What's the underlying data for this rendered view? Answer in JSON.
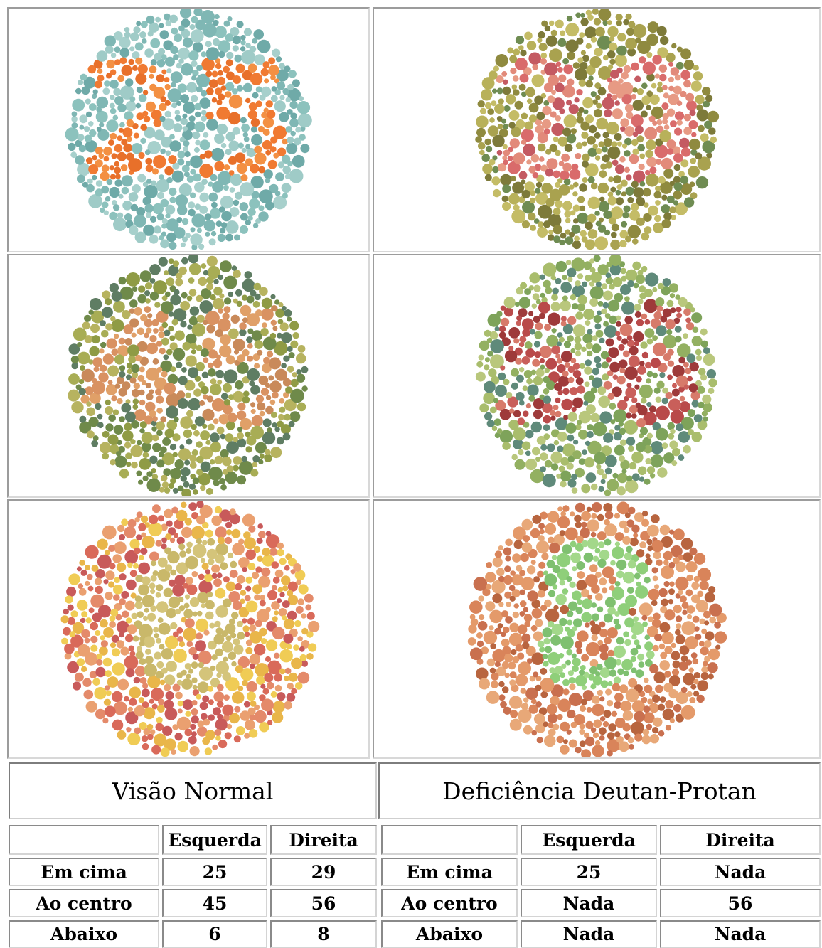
{
  "plates": [
    {
      "id": "plate-1",
      "bg": [
        "#7fb7b4",
        "#8cc2bd",
        "#9fcbc7",
        "#6faaa8",
        "#a7d0cc"
      ],
      "fg": [
        "#f07a32",
        "#f39043",
        "#e8702a"
      ],
      "digits": "25",
      "visible": true
    },
    {
      "id": "plate-2",
      "bg": [
        "#a9a24f",
        "#8f8a3f",
        "#c4bc66",
        "#7d7a3a",
        "#b8b15a",
        "#6f8c52"
      ],
      "fg": [
        "#d96b6b",
        "#e28a7a",
        "#c45a62",
        "#e79a84"
      ],
      "digits": "29",
      "visible": true
    },
    {
      "id": "plate-3",
      "bg": [
        "#8f9b45",
        "#a8ad55",
        "#6f8a4a",
        "#b7b35f",
        "#5f7d63"
      ],
      "fg": [
        "#e0a068",
        "#d99262",
        "#c98a5a"
      ],
      "digits": "45",
      "visible": true
    },
    {
      "id": "plate-4",
      "bg": [
        "#93b061",
        "#a9bd6c",
        "#7ea35a",
        "#b9c77c",
        "#5f8a7a"
      ],
      "fg": [
        "#b94a4a",
        "#c95f5a",
        "#9e3a3a",
        "#d77a6a"
      ],
      "digits": "56",
      "visible": true
    },
    {
      "id": "plate-5",
      "bg": [
        "#e48a6a",
        "#d96a5a",
        "#e9b64a",
        "#f0cc55",
        "#eaa070",
        "#c85a5a"
      ],
      "fg": [
        "#c9b86a",
        "#d4c47a"
      ],
      "digits": "6",
      "visible": false
    },
    {
      "id": "plate-6",
      "bg": [
        "#d9845a",
        "#c9704f",
        "#e49a6a",
        "#b8653f",
        "#e8a878"
      ],
      "fg": [
        "#8fcf7a",
        "#7fc070",
        "#a3d88a"
      ],
      "digits": "8",
      "visible": true
    }
  ],
  "headers": {
    "normal": "Visão Normal",
    "deficient": "Deficiência Deutan-Protan"
  },
  "table_normal": {
    "columns": [
      "",
      "Esquerda",
      "Direita"
    ],
    "rows": [
      {
        "label": "Em cima",
        "left": "25",
        "right": "29"
      },
      {
        "label": "Ao centro",
        "left": "45",
        "right": "56"
      },
      {
        "label": "Abaixo",
        "left": "6",
        "right": "8"
      }
    ]
  },
  "table_deficient": {
    "columns": [
      "",
      "Esquerda",
      "Direita"
    ],
    "rows": [
      {
        "label": "Em cima",
        "left": "25",
        "right": "Nada"
      },
      {
        "label": "Ao centro",
        "left": "Nada",
        "right": "56"
      },
      {
        "label": "Abaixo",
        "left": "Nada",
        "right": "Nada"
      }
    ]
  }
}
